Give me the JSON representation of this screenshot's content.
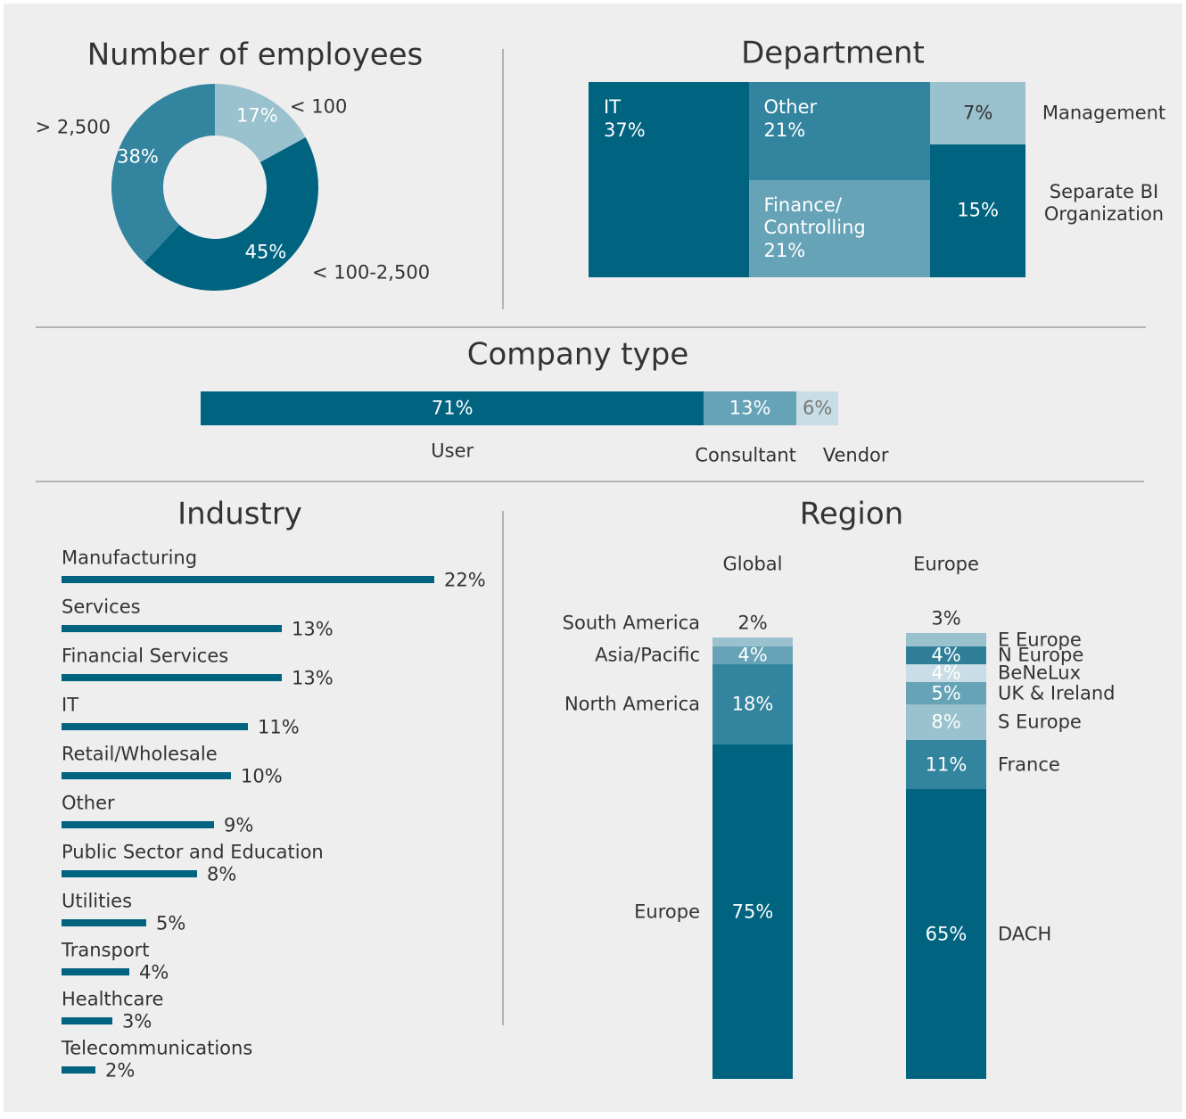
{
  "chart_data": [
    {
      "type": "donut",
      "title": "Number of employees",
      "categories": [
        "< 100",
        "< 100-2,500",
        "> 2,500"
      ],
      "values": [
        17,
        45,
        38
      ],
      "value_labels": [
        "17%",
        "45%",
        "38%"
      ],
      "colors": [
        "#99c1ce",
        "#00637f",
        "#33849e"
      ]
    },
    {
      "type": "treemap",
      "title": "Department",
      "categories": [
        "IT",
        "Other",
        "Finance/\nControlling",
        "Management",
        "Separate BI\nOrganization"
      ],
      "values": [
        37,
        21,
        21,
        7,
        15
      ],
      "value_labels": [
        "37%",
        "21%",
        "21%",
        "7%",
        "15%"
      ],
      "colors": [
        "#00637f",
        "#33849e",
        "#66a3b6",
        "#99c1ce",
        "#00637f"
      ]
    },
    {
      "type": "stacked-bar",
      "title": "Company type",
      "categories": [
        "User",
        "Consultant",
        "Vendor"
      ],
      "values": [
        71,
        13,
        6
      ],
      "value_labels": [
        "71%",
        "13%",
        "6%"
      ],
      "colors": [
        "#00637f",
        "#66a3b6",
        "#c8dde5"
      ]
    },
    {
      "type": "bar",
      "title": "Industry",
      "categories": [
        "Manufacturing",
        "Services",
        "Financial Services",
        "IT",
        "Retail/Wholesale",
        "Other",
        "Public Sector and Education",
        "Utilities",
        "Transport",
        "Healthcare",
        "Telecommunications"
      ],
      "values": [
        22,
        13,
        13,
        11,
        10,
        9,
        8,
        5,
        4,
        3,
        2
      ],
      "value_labels": [
        "22%",
        "13%",
        "13%",
        "11%",
        "10%",
        "9%",
        "8%",
        "5%",
        "4%",
        "3%",
        "2%"
      ],
      "color": "#00637f"
    },
    {
      "type": "stacked-column",
      "title": "Region",
      "series": [
        {
          "name": "Global",
          "categories": [
            "Europe",
            "North America",
            "Asia/Pacific",
            "South America"
          ],
          "values": [
            75,
            18,
            4,
            2
          ],
          "value_labels": [
            "75%",
            "18%",
            "4%",
            "2%"
          ],
          "colors": [
            "#00637f",
            "#33849e",
            "#66a3b6",
            "#99c1ce"
          ]
        },
        {
          "name": "Europe",
          "categories": [
            "DACH",
            "France",
            "S Europe",
            "UK & Ireland",
            "BeNeLux",
            "N Europe",
            "E Europe"
          ],
          "values": [
            65,
            11,
            8,
            5,
            4,
            4,
            3
          ],
          "value_labels": [
            "65%",
            "11%",
            "8%",
            "5%",
            "4%",
            "4%",
            "3%"
          ],
          "colors": [
            "#00637f",
            "#33849e",
            "#99c1ce",
            "#66a3b6",
            "#c8dde5",
            "#2f7f98",
            "#99c1ce"
          ]
        }
      ]
    }
  ]
}
